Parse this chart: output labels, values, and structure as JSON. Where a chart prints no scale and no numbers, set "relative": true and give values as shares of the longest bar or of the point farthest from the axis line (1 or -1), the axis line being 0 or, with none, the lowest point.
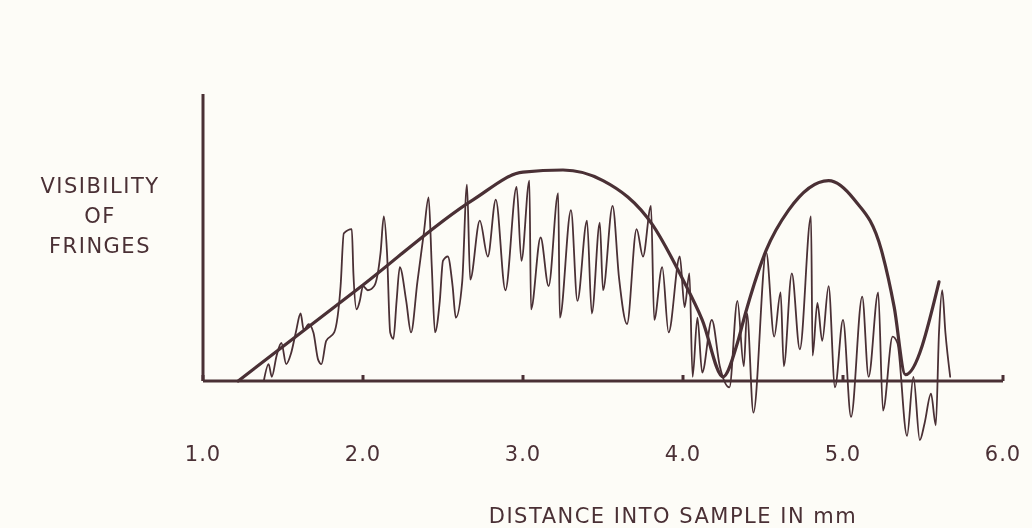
{
  "chart_data": {
    "type": "line",
    "relative": true,
    "xlabel": "DISTANCE INTO SAMPLE IN mm",
    "ylabel": "VISIBILITY\nOF\nFRINGES",
    "xlim": [
      1.0,
      6.0
    ],
    "xticks": [
      {
        "value": 1,
        "label": "1.0"
      },
      {
        "value": 2,
        "label": "2.0"
      },
      {
        "value": 3,
        "label": "3.0"
      },
      {
        "value": 4,
        "label": "4.0"
      },
      {
        "value": 5,
        "label": "5.0"
      },
      {
        "value": 6,
        "label": "6.0"
      }
    ],
    "grid": false,
    "marker": "none",
    "line_style": "solid",
    "series": [
      {
        "color": "#4a3035",
        "x": [
          1.38,
          1.41,
          1.43,
          1.46,
          1.49,
          1.52,
          1.55,
          1.58,
          1.61,
          1.63,
          1.66,
          1.69,
          1.72,
          1.74,
          1.77,
          1.82,
          1.86,
          1.88,
          1.93,
          1.94,
          1.96,
          1.98,
          2.0,
          2.03,
          2.07,
          2.11,
          2.13,
          2.15,
          2.17,
          2.19,
          2.21,
          2.23,
          2.27,
          2.3,
          2.34,
          2.38,
          2.41,
          2.43,
          2.45,
          2.48,
          2.5,
          2.53,
          2.56,
          2.58,
          2.62,
          2.65,
          2.67,
          2.73,
          2.78,
          2.83,
          2.89,
          2.96,
          2.99,
          3.04,
          3.05,
          3.11,
          3.16,
          3.22,
          3.23,
          3.3,
          3.34,
          3.4,
          3.43,
          3.48,
          3.5,
          3.56,
          3.6,
          3.65,
          3.71,
          3.75,
          3.8,
          3.82,
          3.87,
          3.91,
          3.98,
          4.01,
          4.04,
          4.06,
          4.09,
          4.12,
          4.18,
          4.23,
          4.29,
          4.34,
          4.38,
          4.4,
          4.44,
          4.52,
          4.57,
          4.61,
          4.63,
          4.68,
          4.73,
          4.8,
          4.81,
          4.84,
          4.87,
          4.91,
          4.95,
          5.0,
          5.05,
          5.12,
          5.16,
          5.22,
          5.25,
          5.31,
          5.34,
          5.4,
          5.44,
          5.48,
          5.51,
          5.55,
          5.58,
          5.6,
          5.62,
          5.64,
          5.67
        ],
        "values": [
          0.0,
          0.08,
          0.02,
          0.12,
          0.18,
          0.08,
          0.13,
          0.23,
          0.32,
          0.24,
          0.27,
          0.23,
          0.1,
          0.08,
          0.19,
          0.23,
          0.45,
          0.7,
          0.72,
          0.51,
          0.34,
          0.38,
          0.45,
          0.43,
          0.45,
          0.61,
          0.78,
          0.61,
          0.23,
          0.2,
          0.38,
          0.54,
          0.38,
          0.23,
          0.47,
          0.7,
          0.87,
          0.54,
          0.23,
          0.38,
          0.57,
          0.59,
          0.45,
          0.3,
          0.47,
          0.93,
          0.48,
          0.76,
          0.59,
          0.86,
          0.43,
          0.92,
          0.57,
          0.95,
          0.34,
          0.68,
          0.45,
          0.89,
          0.3,
          0.81,
          0.38,
          0.76,
          0.32,
          0.75,
          0.43,
          0.83,
          0.49,
          0.27,
          0.72,
          0.59,
          0.83,
          0.29,
          0.54,
          0.23,
          0.59,
          0.35,
          0.51,
          0.02,
          0.3,
          0.04,
          0.29,
          0.07,
          -0.03,
          0.38,
          0.07,
          0.32,
          -0.15,
          0.61,
          0.21,
          0.42,
          0.07,
          0.51,
          0.15,
          0.78,
          0.12,
          0.37,
          0.19,
          0.45,
          -0.03,
          0.29,
          -0.17,
          0.4,
          0.02,
          0.42,
          -0.14,
          0.21,
          0.18,
          -0.26,
          0.02,
          -0.28,
          -0.2,
          -0.06,
          -0.21,
          0.23,
          0.43,
          0.23,
          0.02
        ]
      },
      {
        "color": "#4a3035",
        "x": [
          1.22,
          2.0,
          2.69,
          3.0,
          3.25,
          3.5,
          3.81,
          4.0,
          4.12,
          4.25,
          4.34,
          4.39,
          4.52,
          4.66,
          4.91,
          5.07,
          5.24,
          5.32,
          5.39,
          5.6
        ],
        "values": [
          0.0,
          0.455,
          0.86,
          0.99,
          1.0,
          0.95,
          0.74,
          0.48,
          0.29,
          0.02,
          0.18,
          0.32,
          0.62,
          0.81,
          0.95,
          0.86,
          0.62,
          0.35,
          0.03,
          0.47
        ]
      }
    ]
  }
}
